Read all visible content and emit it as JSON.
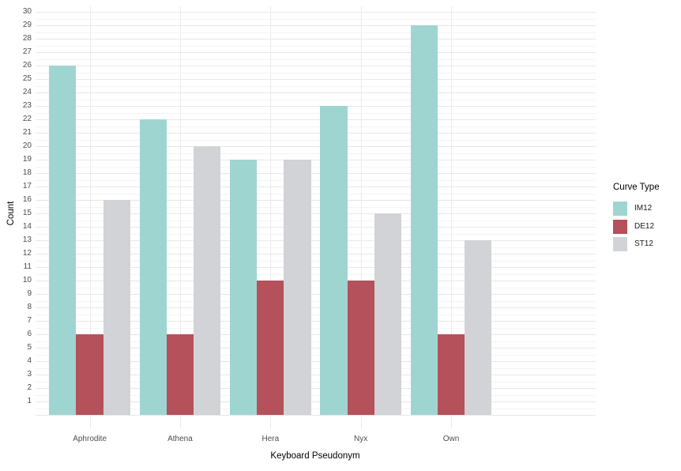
{
  "chart_data": {
    "type": "bar",
    "grouping": "dodged",
    "title": "",
    "xlabel": "Keyboard Pseudonym",
    "ylabel": "Count",
    "categories": [
      "Aphrodite",
      "Athena",
      "Hera",
      "Nyx",
      "Own"
    ],
    "series": [
      {
        "name": "IM12",
        "color": "#9fd5d1",
        "values": [
          26,
          22,
          19,
          23,
          29
        ]
      },
      {
        "name": "DE12",
        "color": "#b4515a",
        "values": [
          6,
          6,
          10,
          10,
          6
        ]
      },
      {
        "name": "ST12",
        "color": "#d1d3d6",
        "values": [
          16,
          20,
          19,
          15,
          13
        ]
      }
    ],
    "ylim": [
      0,
      30
    ],
    "yticks": [
      1,
      2,
      3,
      4,
      5,
      6,
      7,
      8,
      9,
      10,
      11,
      12,
      13,
      14,
      15,
      16,
      17,
      18,
      19,
      20,
      21,
      22,
      23,
      24,
      25,
      26,
      27,
      28,
      29,
      30
    ],
    "grid": {
      "show": true,
      "major_color": "#e7e7e7",
      "minor_color": "#f4f4f4"
    },
    "legend": {
      "title": "Curve Type",
      "position": "right"
    },
    "background": "#ffffff",
    "axis_text_color": "#4d4d4d"
  }
}
